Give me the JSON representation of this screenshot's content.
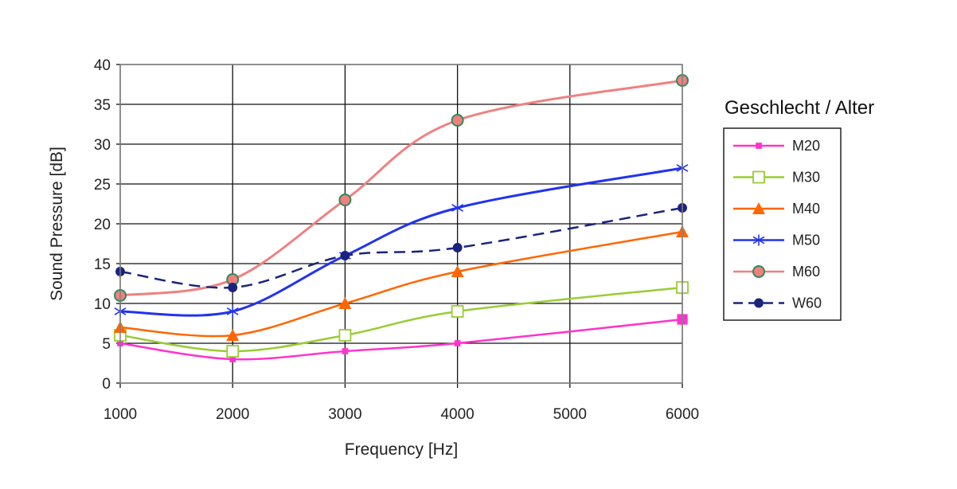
{
  "chart_data": {
    "type": "line",
    "title": "",
    "xlabel": "Frequency  [Hz]",
    "ylabel": "Sound Pressure [dB]",
    "x": [
      1000,
      2000,
      3000,
      4000,
      6000
    ],
    "xlim": [
      1000,
      6000
    ],
    "ylim": [
      0,
      40
    ],
    "xticks": [
      "1000",
      "2000",
      "3000",
      "4000",
      "5000",
      "6000"
    ],
    "yticks": [
      "0",
      "5",
      "10",
      "15",
      "20",
      "25",
      "30",
      "35",
      "40"
    ],
    "grid": true,
    "legend_title": "Geschlecht / Alter",
    "legend_position": "right",
    "series": [
      {
        "name": "M20",
        "values": [
          5,
          3,
          4,
          5,
          8
        ],
        "color": "#ff33cc",
        "marker": "square-filled",
        "dash": false
      },
      {
        "name": "M30",
        "values": [
          6,
          4,
          6,
          9,
          12
        ],
        "color": "#99cc33",
        "marker": "square-open",
        "dash": false
      },
      {
        "name": "M40",
        "values": [
          7,
          6,
          10,
          14,
          19
        ],
        "color": "#ff6600",
        "marker": "triangle",
        "dash": false
      },
      {
        "name": "M50",
        "values": [
          9,
          9,
          16,
          22,
          27
        ],
        "color": "#2233ee",
        "marker": "asterisk",
        "dash": false
      },
      {
        "name": "M60",
        "values": [
          11,
          13,
          23,
          33,
          38
        ],
        "color": "#f08080",
        "marker": "circle-green",
        "dash": false
      },
      {
        "name": "W60",
        "values": [
          14,
          12,
          16,
          17,
          22
        ],
        "color": "#1a237e",
        "marker": "circle-navy",
        "dash": true
      }
    ]
  }
}
